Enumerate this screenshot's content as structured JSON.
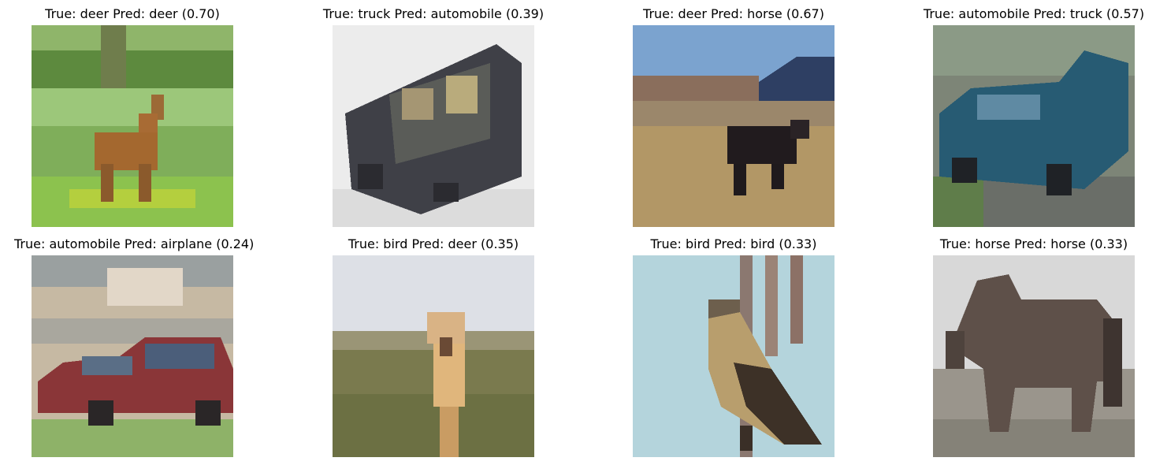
{
  "panels": [
    {
      "title": "True: deer Pred: deer (0.70)",
      "true_label": "deer",
      "pred_label": "deer",
      "confidence": 0.7
    },
    {
      "title": "True: truck Pred: automobile (0.39)",
      "true_label": "truck",
      "pred_label": "automobile",
      "confidence": 0.39
    },
    {
      "title": "True: deer Pred: horse (0.67)",
      "true_label": "deer",
      "pred_label": "horse",
      "confidence": 0.67
    },
    {
      "title": "True: automobile Pred: truck (0.57)",
      "true_label": "automobile",
      "pred_label": "truck",
      "confidence": 0.57
    },
    {
      "title": "True: automobile Pred: airplane (0.24)",
      "true_label": "automobile",
      "pred_label": "airplane",
      "confidence": 0.24
    },
    {
      "title": "True: bird Pred: deer (0.35)",
      "true_label": "bird",
      "pred_label": "deer",
      "confidence": 0.35
    },
    {
      "title": "True: bird Pred: bird (0.33)",
      "true_label": "bird",
      "pred_label": "bird",
      "confidence": 0.33
    },
    {
      "title": "True: horse Pred: horse (0.33)",
      "true_label": "horse",
      "pred_label": "horse",
      "confidence": 0.33
    }
  ]
}
